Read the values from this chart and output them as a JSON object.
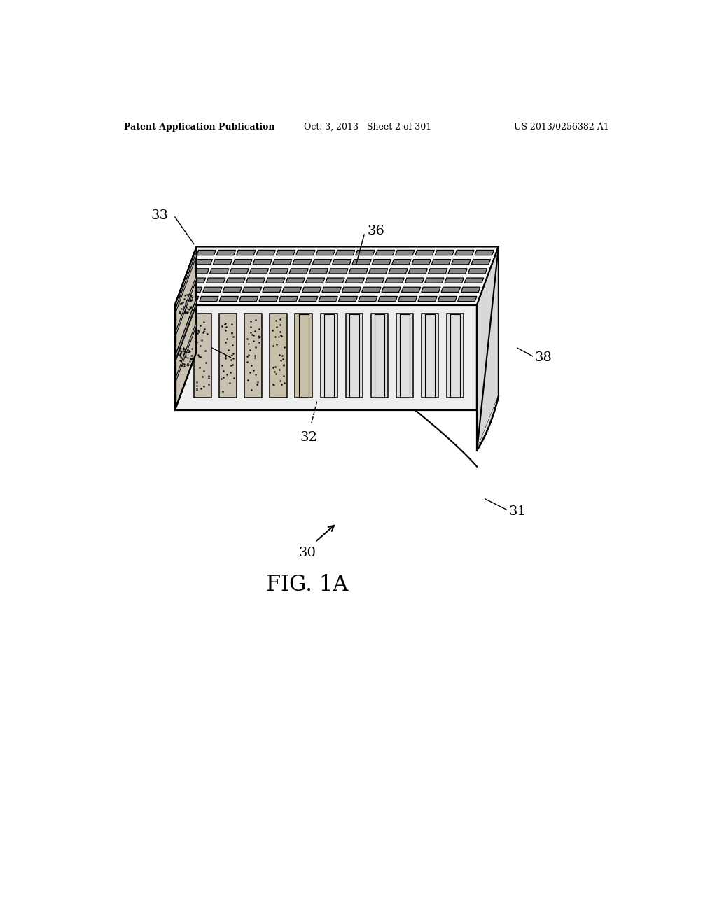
{
  "bg_color": "#ffffff",
  "header_left": "Patent Application Publication",
  "header_mid": "Oct. 3, 2013   Sheet 2 of 301",
  "header_right": "US 2013/0256382 A1",
  "figure_label": "FIG. 1A",
  "body_fill_top": "#f5f5f5",
  "body_fill_side_left": "#e8e8e8",
  "body_fill_front": "#eeeeee",
  "body_fill_right_end": "#d8d8d8",
  "slot_fill": "#888888",
  "foam_fill": "#c8c0b0",
  "pocket_fill": "#d0d0d0",
  "line_color": "#000000",
  "lw_main": 1.6,
  "lw_slot": 0.9,
  "label_fontsize": 14,
  "header_fontsize": 9,
  "fig_label_fontsize": 22,
  "n_slot_cols": 15,
  "n_slot_rows": 6,
  "n_pockets": 11
}
